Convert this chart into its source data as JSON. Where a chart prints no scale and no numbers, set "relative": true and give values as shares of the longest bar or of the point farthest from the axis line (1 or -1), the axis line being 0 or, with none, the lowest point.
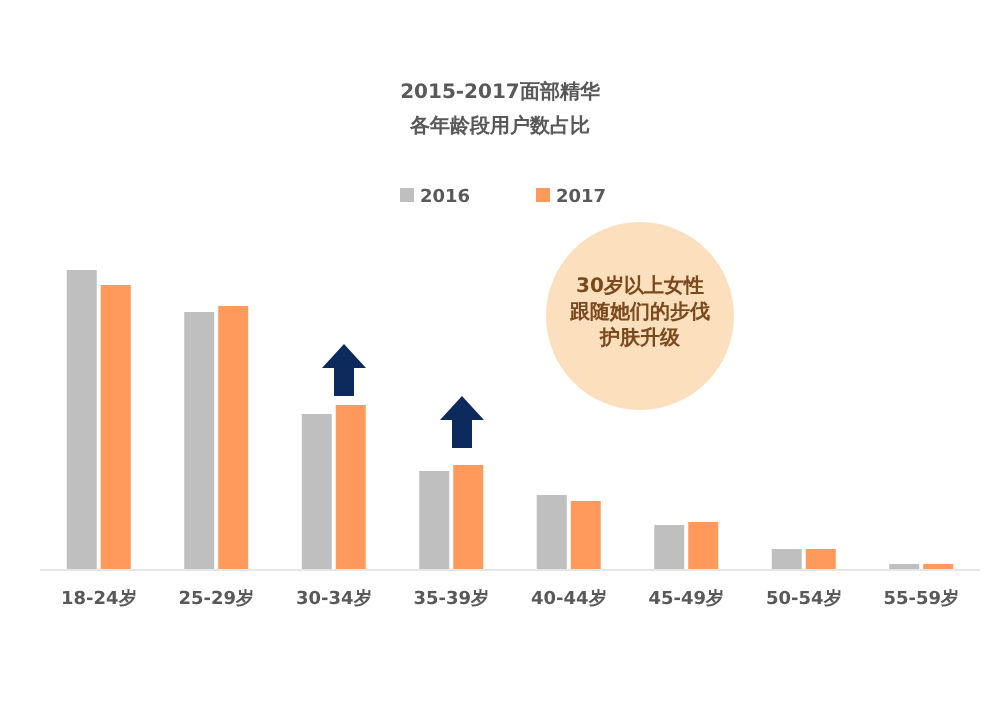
{
  "chart_data": {
    "type": "bar",
    "title": "2015-2017面部精华",
    "subtitle": "各年龄段用户数占比",
    "categories": [
      "18-24岁",
      "25-29岁",
      "30-34岁",
      "35-39岁",
      "40-44岁",
      "45-49岁",
      "50-54岁",
      "55-59岁"
    ],
    "series": [
      {
        "name": "2016",
        "color": "#bfbfbf",
        "values": [
          1,
          0.86,
          0.52,
          0.33,
          0.25,
          0.15,
          0.07,
          0.02
        ]
      },
      {
        "name": "2017",
        "color": "#ff9a5c",
        "values": [
          0.95,
          0.88,
          0.55,
          0.35,
          0.23,
          0.16,
          0.07,
          0.02
        ]
      }
    ],
    "relative": true,
    "legend": "top",
    "annotations": [
      "30岁以上女性",
      "跟随她们的步伐",
      "护肤升级"
    ]
  }
}
